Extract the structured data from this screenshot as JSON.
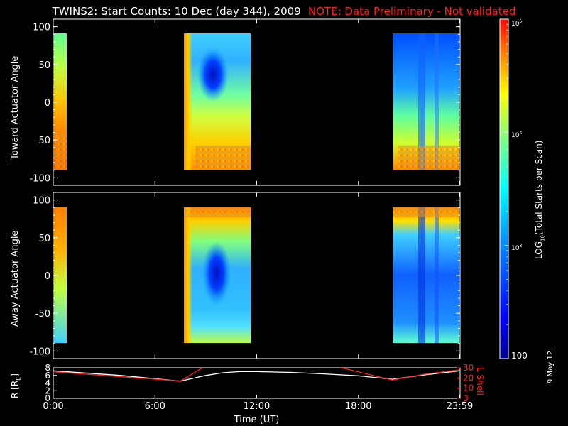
{
  "title": "TWINS2: Start Counts: 10 Dec (day 344), 2009",
  "note": "NOTE: Data Preliminary - Not validated",
  "stamp": "9 May 12",
  "colors": {
    "note": "#ff2020",
    "r_line": "#ffffff",
    "lshell_line": "#ff2020",
    "axis": "#ffffff"
  },
  "chart_data": [
    {
      "type": "heatmap",
      "ylabel": "Toward Actuator Angle",
      "ylim": [
        -110,
        110
      ],
      "yticks": [
        -100,
        -50,
        0,
        50,
        100
      ],
      "xlim": [
        0,
        24
      ],
      "data_blocks": [
        {
          "start": "0:00",
          "end": "0:08",
          "profile": "orange-edge"
        },
        {
          "start": "7:35",
          "end": "11:40",
          "profile": "blue-core-upper"
        },
        {
          "start": "20:00",
          "end": "23:59",
          "profile": "blue-stripes"
        }
      ],
      "angle_range": [
        -90,
        90
      ]
    },
    {
      "type": "heatmap",
      "ylabel": "Away Actuator Angle",
      "ylim": [
        -110,
        110
      ],
      "yticks": [
        -100,
        -50,
        0,
        50,
        100
      ],
      "xlim": [
        0,
        24
      ],
      "data_blocks": [
        {
          "start": "0:00",
          "end": "0:08",
          "profile": "orange-edge"
        },
        {
          "start": "7:35",
          "end": "11:40",
          "profile": "blue-core-mid"
        },
        {
          "start": "20:00",
          "end": "23:59",
          "profile": "blue-stripes"
        }
      ],
      "angle_range": [
        -90,
        90
      ]
    },
    {
      "type": "line",
      "xlabel": "Time (UT)",
      "xticks": [
        "0:00",
        "6:00",
        "12:00",
        "18:00",
        "23:59"
      ],
      "xtick_hours": [
        0,
        6,
        12,
        18,
        23.98
      ],
      "y_left_label": "R [RE]",
      "y_left_ticks": [
        0,
        2,
        4,
        6,
        8
      ],
      "y_left_range": [
        0,
        8
      ],
      "y_right_label": "L Shell",
      "y_right_ticks": [
        0,
        10,
        20,
        30
      ],
      "y_right_range": [
        0,
        30
      ],
      "series": [
        {
          "name": "R [RE]",
          "axis": "left",
          "x": [
            0,
            2,
            4,
            7.5,
            8,
            9,
            10,
            11,
            12,
            14,
            16,
            18,
            20,
            22,
            23.98
          ],
          "y": [
            7.2,
            6.6,
            6.0,
            4.5,
            5.0,
            6.0,
            6.7,
            7.0,
            7.0,
            6.8,
            6.4,
            5.9,
            5.0,
            6.2,
            7.2
          ]
        },
        {
          "name": "L Shell",
          "axis": "right",
          "x": [
            0,
            7.5,
            9.0
          ],
          "y": [
            26,
            17,
            32
          ]
        },
        {
          "name": "L Shell",
          "axis": "right",
          "x": [
            16.5,
            20,
            22,
            23.98
          ],
          "y": [
            32,
            18,
            24,
            28
          ]
        }
      ]
    },
    {
      "type": "heatmap-colorbar",
      "label": "LOG10(Total Starts per Scan)",
      "scale": "log",
      "ticks": [
        "100",
        "10^3",
        "10^4",
        "10^5"
      ],
      "range": [
        100,
        100000
      ]
    }
  ],
  "labels": {
    "panel1_y": "Toward Actuator Angle",
    "panel2_y": "Away Actuator Angle",
    "r_axis": "R [R",
    "r_axis_sub": "E",
    "r_axis_end": "]",
    "lshell_axis": "L Shell",
    "xlabel": "Time (UT)",
    "cbar_log": "LOG",
    "cbar_sub": "10",
    "cbar_rest": "(Total Starts per Scan)",
    "cbar_100": "100",
    "cbar_e3": "10",
    "cbar_e3_exp": "3",
    "cbar_e4": "10",
    "cbar_e4_exp": "4",
    "cbar_e5": "10",
    "cbar_e5_exp": "5"
  }
}
